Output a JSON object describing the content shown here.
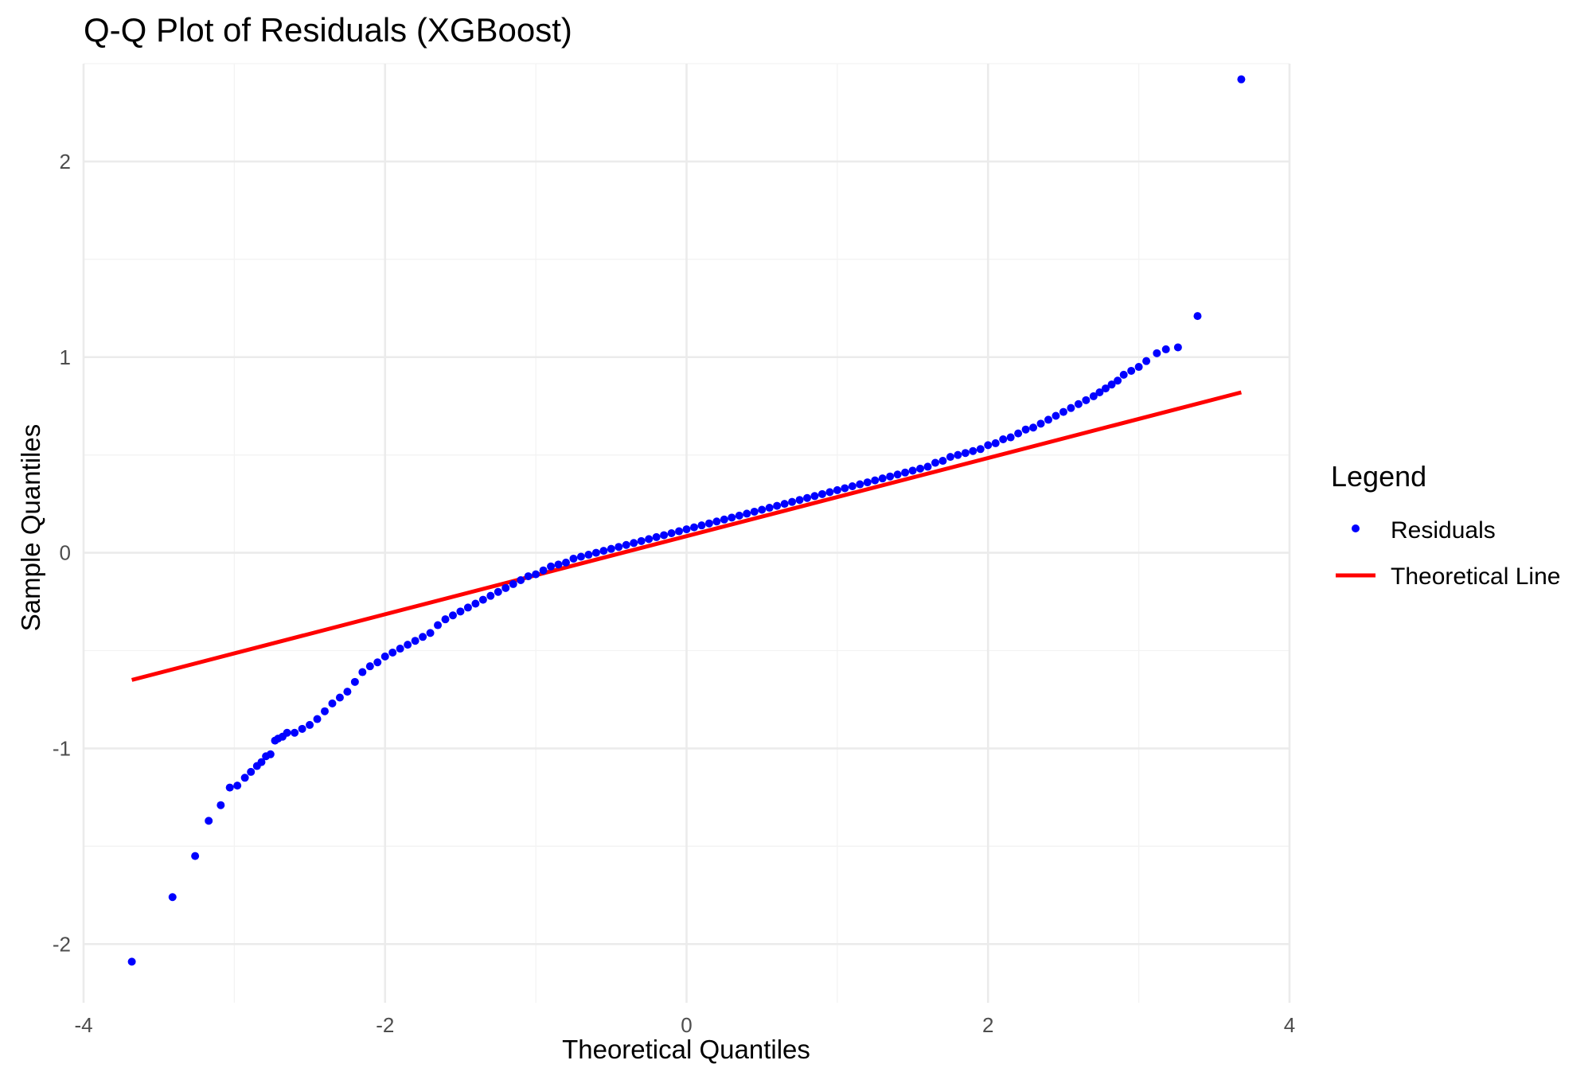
{
  "chart_data": {
    "type": "scatter",
    "title": "Q-Q Plot of Residuals (XGBoost)",
    "xlabel": "Theoretical Quantiles",
    "ylabel": "Sample Quantiles",
    "xlim": [
      -4,
      4
    ],
    "ylim": [
      -2.3,
      2.5
    ],
    "x_ticks": [
      -4,
      -2,
      0,
      2,
      4
    ],
    "y_ticks": [
      -2,
      -1,
      0,
      1,
      2
    ],
    "x_tick_labels": [
      "-4",
      "-2",
      "0",
      "2",
      "4"
    ],
    "y_tick_labels": [
      "-2",
      "-1",
      "0",
      "1",
      "2"
    ],
    "grid": true,
    "legend": {
      "title": "Legend",
      "position": "right",
      "entries": [
        {
          "label": "Residuals",
          "kind": "point",
          "color": "#0000ff"
        },
        {
          "label": "Theoretical Line",
          "kind": "line",
          "color": "#ff0000"
        }
      ]
    },
    "series": [
      {
        "name": "Residuals",
        "kind": "points",
        "color": "#0000ff",
        "x": [
          -3.68,
          -3.41,
          -3.26,
          -3.17,
          -3.09,
          -3.03,
          -2.98,
          -2.93,
          -2.89,
          -2.85,
          -2.82,
          -2.79,
          -2.76,
          -2.73,
          -2.71,
          -2.68,
          -2.65,
          -2.6,
          -2.55,
          -2.5,
          -2.45,
          -2.4,
          -2.35,
          -2.3,
          -2.25,
          -2.2,
          -2.15,
          -2.1,
          -2.05,
          -2.0,
          -1.95,
          -1.9,
          -1.85,
          -1.8,
          -1.75,
          -1.7,
          -1.65,
          -1.6,
          -1.55,
          -1.5,
          -1.45,
          -1.4,
          -1.35,
          -1.3,
          -1.25,
          -1.2,
          -1.15,
          -1.1,
          -1.05,
          -1.0,
          -0.95,
          -0.9,
          -0.85,
          -0.8,
          -0.75,
          -0.7,
          -0.65,
          -0.6,
          -0.55,
          -0.5,
          -0.45,
          -0.4,
          -0.35,
          -0.3,
          -0.25,
          -0.2,
          -0.15,
          -0.1,
          -0.05,
          0.0,
          0.05,
          0.1,
          0.15,
          0.2,
          0.25,
          0.3,
          0.35,
          0.4,
          0.45,
          0.5,
          0.55,
          0.6,
          0.65,
          0.7,
          0.75,
          0.8,
          0.85,
          0.9,
          0.95,
          1.0,
          1.05,
          1.1,
          1.15,
          1.2,
          1.25,
          1.3,
          1.35,
          1.4,
          1.45,
          1.5,
          1.55,
          1.6,
          1.65,
          1.7,
          1.75,
          1.8,
          1.85,
          1.9,
          1.95,
          2.0,
          2.05,
          2.1,
          2.15,
          2.2,
          2.25,
          2.3,
          2.35,
          2.4,
          2.45,
          2.5,
          2.55,
          2.6,
          2.65,
          2.7,
          2.74,
          2.78,
          2.82,
          2.86,
          2.9,
          2.95,
          3.0,
          3.05,
          3.12,
          3.18,
          3.26,
          3.39,
          3.68
        ],
        "y": [
          -2.09,
          -1.76,
          -1.55,
          -1.37,
          -1.29,
          -1.2,
          -1.19,
          -1.15,
          -1.12,
          -1.09,
          -1.07,
          -1.04,
          -1.03,
          -0.96,
          -0.95,
          -0.94,
          -0.92,
          -0.92,
          -0.9,
          -0.88,
          -0.85,
          -0.81,
          -0.77,
          -0.74,
          -0.71,
          -0.66,
          -0.61,
          -0.58,
          -0.56,
          -0.53,
          -0.51,
          -0.49,
          -0.47,
          -0.45,
          -0.43,
          -0.41,
          -0.37,
          -0.34,
          -0.32,
          -0.3,
          -0.28,
          -0.26,
          -0.24,
          -0.22,
          -0.2,
          -0.18,
          -0.16,
          -0.14,
          -0.12,
          -0.11,
          -0.09,
          -0.07,
          -0.06,
          -0.05,
          -0.03,
          -0.02,
          -0.01,
          0.0,
          0.01,
          0.02,
          0.03,
          0.04,
          0.05,
          0.06,
          0.07,
          0.08,
          0.09,
          0.1,
          0.11,
          0.12,
          0.13,
          0.14,
          0.15,
          0.16,
          0.17,
          0.18,
          0.19,
          0.2,
          0.21,
          0.22,
          0.23,
          0.24,
          0.25,
          0.26,
          0.27,
          0.28,
          0.29,
          0.3,
          0.31,
          0.32,
          0.33,
          0.34,
          0.35,
          0.36,
          0.37,
          0.38,
          0.39,
          0.4,
          0.41,
          0.42,
          0.43,
          0.44,
          0.46,
          0.47,
          0.49,
          0.5,
          0.51,
          0.52,
          0.53,
          0.55,
          0.56,
          0.58,
          0.59,
          0.61,
          0.63,
          0.64,
          0.66,
          0.68,
          0.7,
          0.72,
          0.74,
          0.76,
          0.78,
          0.8,
          0.82,
          0.84,
          0.86,
          0.88,
          0.91,
          0.93,
          0.95,
          0.98,
          1.02,
          1.04,
          1.05,
          1.21,
          2.42
        ]
      },
      {
        "name": "Theoretical Line",
        "kind": "line",
        "color": "#ff0000",
        "x": [
          -3.68,
          3.68
        ],
        "y": [
          -0.65,
          0.82
        ]
      }
    ]
  }
}
